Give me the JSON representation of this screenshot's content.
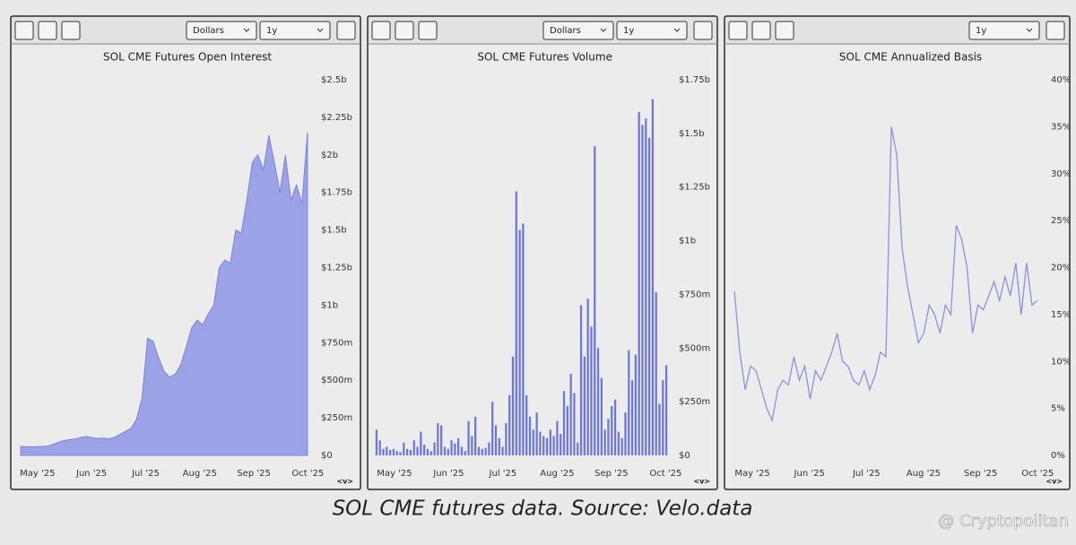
{
  "chart_data": [
    {
      "type": "area",
      "title": "SOL CME Futures Open Interest",
      "unit_selector": "Dollars",
      "range_selector": "1y",
      "nav_label": "<v>",
      "color": "#9ba3e6",
      "xticks": [
        "May '25",
        "Jun '25",
        "Jul '25",
        "Aug '25",
        "Sep '25",
        "Oct '25"
      ],
      "values": [
        60,
        58,
        57,
        58,
        60,
        62,
        75,
        90,
        100,
        105,
        110,
        120,
        125,
        118,
        112,
        115,
        110,
        120,
        140,
        160,
        180,
        240,
        380,
        780,
        760,
        650,
        560,
        520,
        540,
        600,
        720,
        850,
        900,
        870,
        940,
        1000,
        1250,
        1300,
        1280,
        1500,
        1480,
        1700,
        1950,
        2000,
        1900,
        2130,
        1950,
        1750,
        2000,
        1700,
        1800,
        1680,
        2150
      ],
      "ylim": [
        0,
        2500
      ],
      "yticks": [
        {
          "value": 0,
          "label": "$0"
        },
        {
          "value": 250,
          "label": "$250m"
        },
        {
          "value": 500,
          "label": "$500m"
        },
        {
          "value": 750,
          "label": "$750m"
        },
        {
          "value": 1000,
          "label": "$1b"
        },
        {
          "value": 1250,
          "label": "$1.25b"
        },
        {
          "value": 1500,
          "label": "$1.5b"
        },
        {
          "value": 1750,
          "label": "$1.75b"
        },
        {
          "value": 2000,
          "label": "$2b"
        },
        {
          "value": 2250,
          "label": "$2.25b"
        },
        {
          "value": 2500,
          "label": "$2.5b"
        }
      ]
    },
    {
      "type": "bar",
      "title": "SOL CME Futures Volume",
      "unit_selector": "Dollars",
      "range_selector": "1y",
      "nav_label": "<v>",
      "color": "#6f78d6",
      "xticks": [
        "May '25",
        "Jun '25",
        "Jul '25",
        "Aug '25",
        "Sep '25",
        "Oct '25"
      ],
      "values": [
        120,
        70,
        30,
        40,
        25,
        30,
        20,
        15,
        60,
        30,
        25,
        70,
        40,
        110,
        50,
        30,
        20,
        60,
        150,
        140,
        40,
        30,
        70,
        55,
        80,
        40,
        20,
        160,
        90,
        180,
        40,
        30,
        35,
        60,
        250,
        140,
        80,
        40,
        150,
        280,
        460,
        1230,
        1050,
        1080,
        280,
        180,
        120,
        200,
        110,
        90,
        80,
        120,
        90,
        160,
        100,
        300,
        230,
        380,
        290,
        60,
        700,
        460,
        730,
        600,
        1440,
        500,
        360,
        120,
        170,
        230,
        260,
        110,
        80,
        200,
        490,
        350,
        470,
        1600,
        1540,
        1570,
        1480,
        1660,
        760,
        240,
        350,
        420
      ],
      "ylim": [
        0,
        1750
      ],
      "yticks": [
        {
          "value": 0,
          "label": "$0"
        },
        {
          "value": 250,
          "label": "$250m"
        },
        {
          "value": 500,
          "label": "$500m"
        },
        {
          "value": 750,
          "label": "$750m"
        },
        {
          "value": 1000,
          "label": "$1b"
        },
        {
          "value": 1250,
          "label": "$1.25b"
        },
        {
          "value": 1500,
          "label": "$1.5b"
        },
        {
          "value": 1750,
          "label": "$1.75b"
        }
      ]
    },
    {
      "type": "line",
      "title": "SOL CME Annualized Basis",
      "range_selector": "1y",
      "nav_label": "<v>",
      "color": "#8b91dd",
      "xticks": [
        "May '25",
        "Jun '25",
        "Jul '25",
        "Aug '25",
        "Sep '25",
        "Oct '25"
      ],
      "values": [
        17.5,
        11,
        7,
        9.5,
        9,
        7,
        5,
        3.7,
        7,
        8,
        7.5,
        10.5,
        8,
        9.5,
        6,
        9,
        8,
        9.5,
        11,
        13,
        10,
        9.5,
        8,
        7.5,
        9,
        7,
        8.5,
        11,
        10.5,
        35,
        32,
        22,
        18,
        15,
        12,
        13,
        16,
        15,
        13,
        16,
        15,
        24.5,
        23,
        20,
        13,
        16,
        15.5,
        17,
        18.5,
        16.5,
        19,
        17,
        20.5,
        15,
        20.5,
        16,
        16.5
      ],
      "ylim": [
        0,
        40
      ],
      "yticks": [
        {
          "value": 0,
          "label": "0%"
        },
        {
          "value": 5,
          "label": "5%"
        },
        {
          "value": 10,
          "label": "10%"
        },
        {
          "value": 15,
          "label": "15%"
        },
        {
          "value": 20,
          "label": "20%"
        },
        {
          "value": 25,
          "label": "25%"
        },
        {
          "value": 30,
          "label": "30%"
        },
        {
          "value": 35,
          "label": "35%"
        },
        {
          "value": 40,
          "label": "40%"
        }
      ]
    }
  ],
  "caption": "SOL CME futures data. Source: Velo.data",
  "watermark": "@ Cryptopolitan"
}
